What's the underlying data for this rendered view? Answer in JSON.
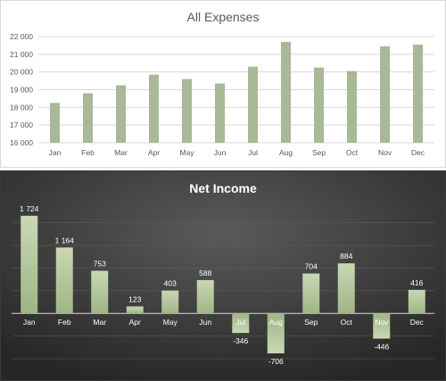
{
  "chart_data": [
    {
      "type": "bar",
      "title": "All Expenses",
      "categories": [
        "Jan",
        "Feb",
        "Mar",
        "Apr",
        "May",
        "Jun",
        "Jul",
        "Aug",
        "Sep",
        "Oct",
        "Nov",
        "Dec"
      ],
      "values": [
        18250,
        18800,
        19250,
        19850,
        19600,
        19350,
        20300,
        21700,
        20250,
        20050,
        21450,
        21550
      ],
      "ylim": [
        16000,
        22000
      ],
      "yticks": [
        16000,
        17000,
        18000,
        19000,
        20000,
        21000,
        22000
      ],
      "ytick_labels": [
        "16 000",
        "17 000",
        "18 000",
        "19 000",
        "20 000",
        "21 000",
        "22 000"
      ],
      "grid": true,
      "bar_color": "#a9b896"
    },
    {
      "type": "bar",
      "title": "Net Income",
      "categories": [
        "Jan",
        "Feb",
        "Mar",
        "Apr",
        "May",
        "Jun",
        "Jul",
        "Aug",
        "Sep",
        "Oct",
        "Nov",
        "Dec"
      ],
      "values": [
        1724,
        1164,
        753,
        123,
        403,
        588,
        -346,
        -706,
        704,
        884,
        -446,
        416
      ],
      "value_labels": [
        "1 724",
        "1 164",
        "753",
        "123",
        "403",
        "588",
        "-346",
        "-706",
        "704",
        "884",
        "-446",
        "416"
      ],
      "ylim": [
        -800,
        1800
      ],
      "grid": true,
      "bar_color": "#b3c79b",
      "background": "#2f2f2f"
    }
  ]
}
